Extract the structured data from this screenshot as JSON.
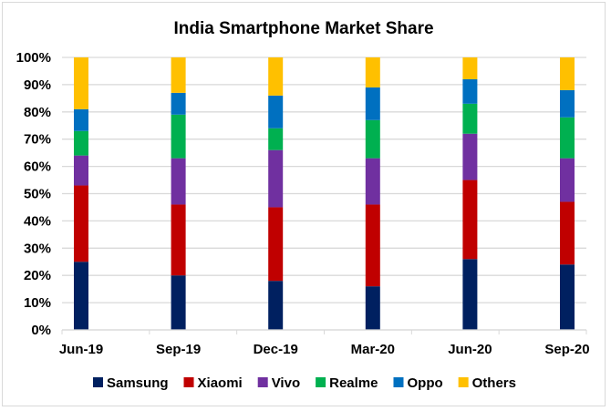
{
  "chart_data": {
    "type": "bar",
    "stacked": true,
    "title": "India Smartphone Market Share",
    "xlabel": "",
    "ylabel": "",
    "ylim": [
      0,
      100
    ],
    "y_ticks": [
      "0%",
      "10%",
      "20%",
      "30%",
      "40%",
      "50%",
      "60%",
      "70%",
      "80%",
      "90%",
      "100%"
    ],
    "grid": true,
    "legend_position": "bottom",
    "categories": [
      "Jun-19",
      "Sep-19",
      "Dec-19",
      "Mar-20",
      "Jun-20",
      "Sep-20"
    ],
    "series": [
      {
        "name": "Samsung",
        "color": "#002060",
        "values": [
          25,
          20,
          18,
          16,
          26,
          24
        ]
      },
      {
        "name": "Xiaomi",
        "color": "#C00000",
        "values": [
          28,
          26,
          27,
          30,
          29,
          23
        ]
      },
      {
        "name": "Vivo",
        "color": "#7030A0",
        "values": [
          11,
          17,
          21,
          17,
          17,
          16
        ]
      },
      {
        "name": "Realme",
        "color": "#00B050",
        "values": [
          9,
          16,
          8,
          14,
          11,
          15
        ]
      },
      {
        "name": "Oppo",
        "color": "#0070C0",
        "values": [
          8,
          8,
          12,
          12,
          9,
          10
        ]
      },
      {
        "name": "Others",
        "color": "#FFC000",
        "values": [
          19,
          13,
          14,
          11,
          8,
          12
        ]
      }
    ]
  }
}
